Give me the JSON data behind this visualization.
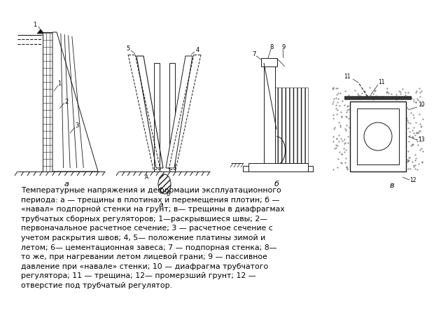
{
  "background_color": "#ffffff",
  "fig_width": 6.4,
  "fig_height": 4.8,
  "dpi": 100,
  "caption_text": "Температурные напряжения и деформации эксплуатационного\nпериода: а — трещины в плотинах и перемещения плотин; б —\n«навал» подпорной стенки на грунт; в— трещины в диафрагмах\nтрубчатых сборных регуляторов; 1—раскрывшиеся швы; 2—\nпервоначальное расчетное сечение; 3 — расчетное сечение с\nучетом раскрытия швов; 4, 5— положение платины зимой и\nлетом; 6— цементационная завеса; 7 — подпорная стенка; 8—\nто же, при нагревании летом лицевой грани; 9 — пассивное\nдавление при «навале» стенки; 10 — диафрагма трубчатого\nрегулятора; 11 — трещина; 12— промерзший грунт; 12 —\nотверстие под трубчатый регулятор.",
  "caption_fontsize": 7.8,
  "line_color": "#1a1a1a",
  "label_a": "а",
  "label_b": "б",
  "label_v": "в"
}
